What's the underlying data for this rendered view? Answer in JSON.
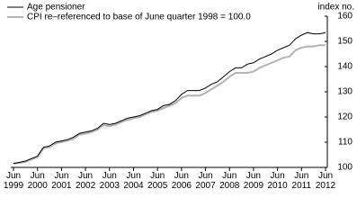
{
  "chart_data": {
    "type": "line",
    "y_label": "index no.",
    "categories": [
      "Jun 1999",
      null,
      null,
      null,
      "Jun 2000",
      null,
      null,
      null,
      "Jun 2001",
      null,
      null,
      null,
      "Jun 2002",
      null,
      null,
      null,
      "Jun 2003",
      null,
      null,
      null,
      "Jun 2004",
      null,
      null,
      null,
      "Jun 2005",
      null,
      null,
      null,
      "Jun 2006",
      null,
      null,
      null,
      "Jun 2007",
      null,
      null,
      null,
      "Jun 2008",
      null,
      null,
      null,
      "Jun 2009",
      null,
      null,
      null,
      "Jun 2010",
      null,
      null,
      null,
      "Jun 2011",
      null,
      null,
      null,
      "Jun 2012"
    ],
    "series": [
      {
        "name": "Age pensioner",
        "color": "#000000",
        "values": [
          101.5,
          102,
          102.5,
          103.5,
          104.5,
          108,
          108.5,
          110,
          110.5,
          111,
          112,
          113.5,
          114,
          114.5,
          115.5,
          117.5,
          117,
          117.5,
          118.5,
          119.5,
          120,
          120.5,
          121.5,
          122.5,
          123,
          124.5,
          125,
          126.5,
          129,
          130.5,
          130.5,
          130.5,
          131.5,
          133,
          134,
          136,
          138,
          139.5,
          139.5,
          141,
          141.5,
          143,
          144,
          145,
          146.5,
          147.5,
          148.5,
          151,
          152.5,
          153.5,
          153,
          153,
          153.5
        ]
      },
      {
        "name": "CPI re–referenced to base of June quarter 1998 = 100.0",
        "color": "#b3b3b3",
        "values": [
          101.5,
          101.8,
          102.2,
          103.2,
          104,
          107.6,
          108,
          109.6,
          110,
          110.6,
          111.3,
          113,
          113.4,
          114,
          115,
          116.8,
          116.3,
          117,
          118,
          118.8,
          119.5,
          120,
          121,
          122,
          122.5,
          123.5,
          124.5,
          125.5,
          127.5,
          128.5,
          128.5,
          128.5,
          129.5,
          131,
          132.5,
          134,
          136,
          137.5,
          137.5,
          137.5,
          138,
          139.5,
          140.5,
          141.5,
          142.5,
          143.5,
          144,
          146.5,
          147.5,
          148,
          148,
          148.5,
          148.5
        ]
      }
    ],
    "ylim": [
      100,
      160
    ],
    "yticks": [
      100,
      110,
      120,
      130,
      140,
      150,
      160
    ],
    "y_axis_side": "right",
    "grid": false
  }
}
